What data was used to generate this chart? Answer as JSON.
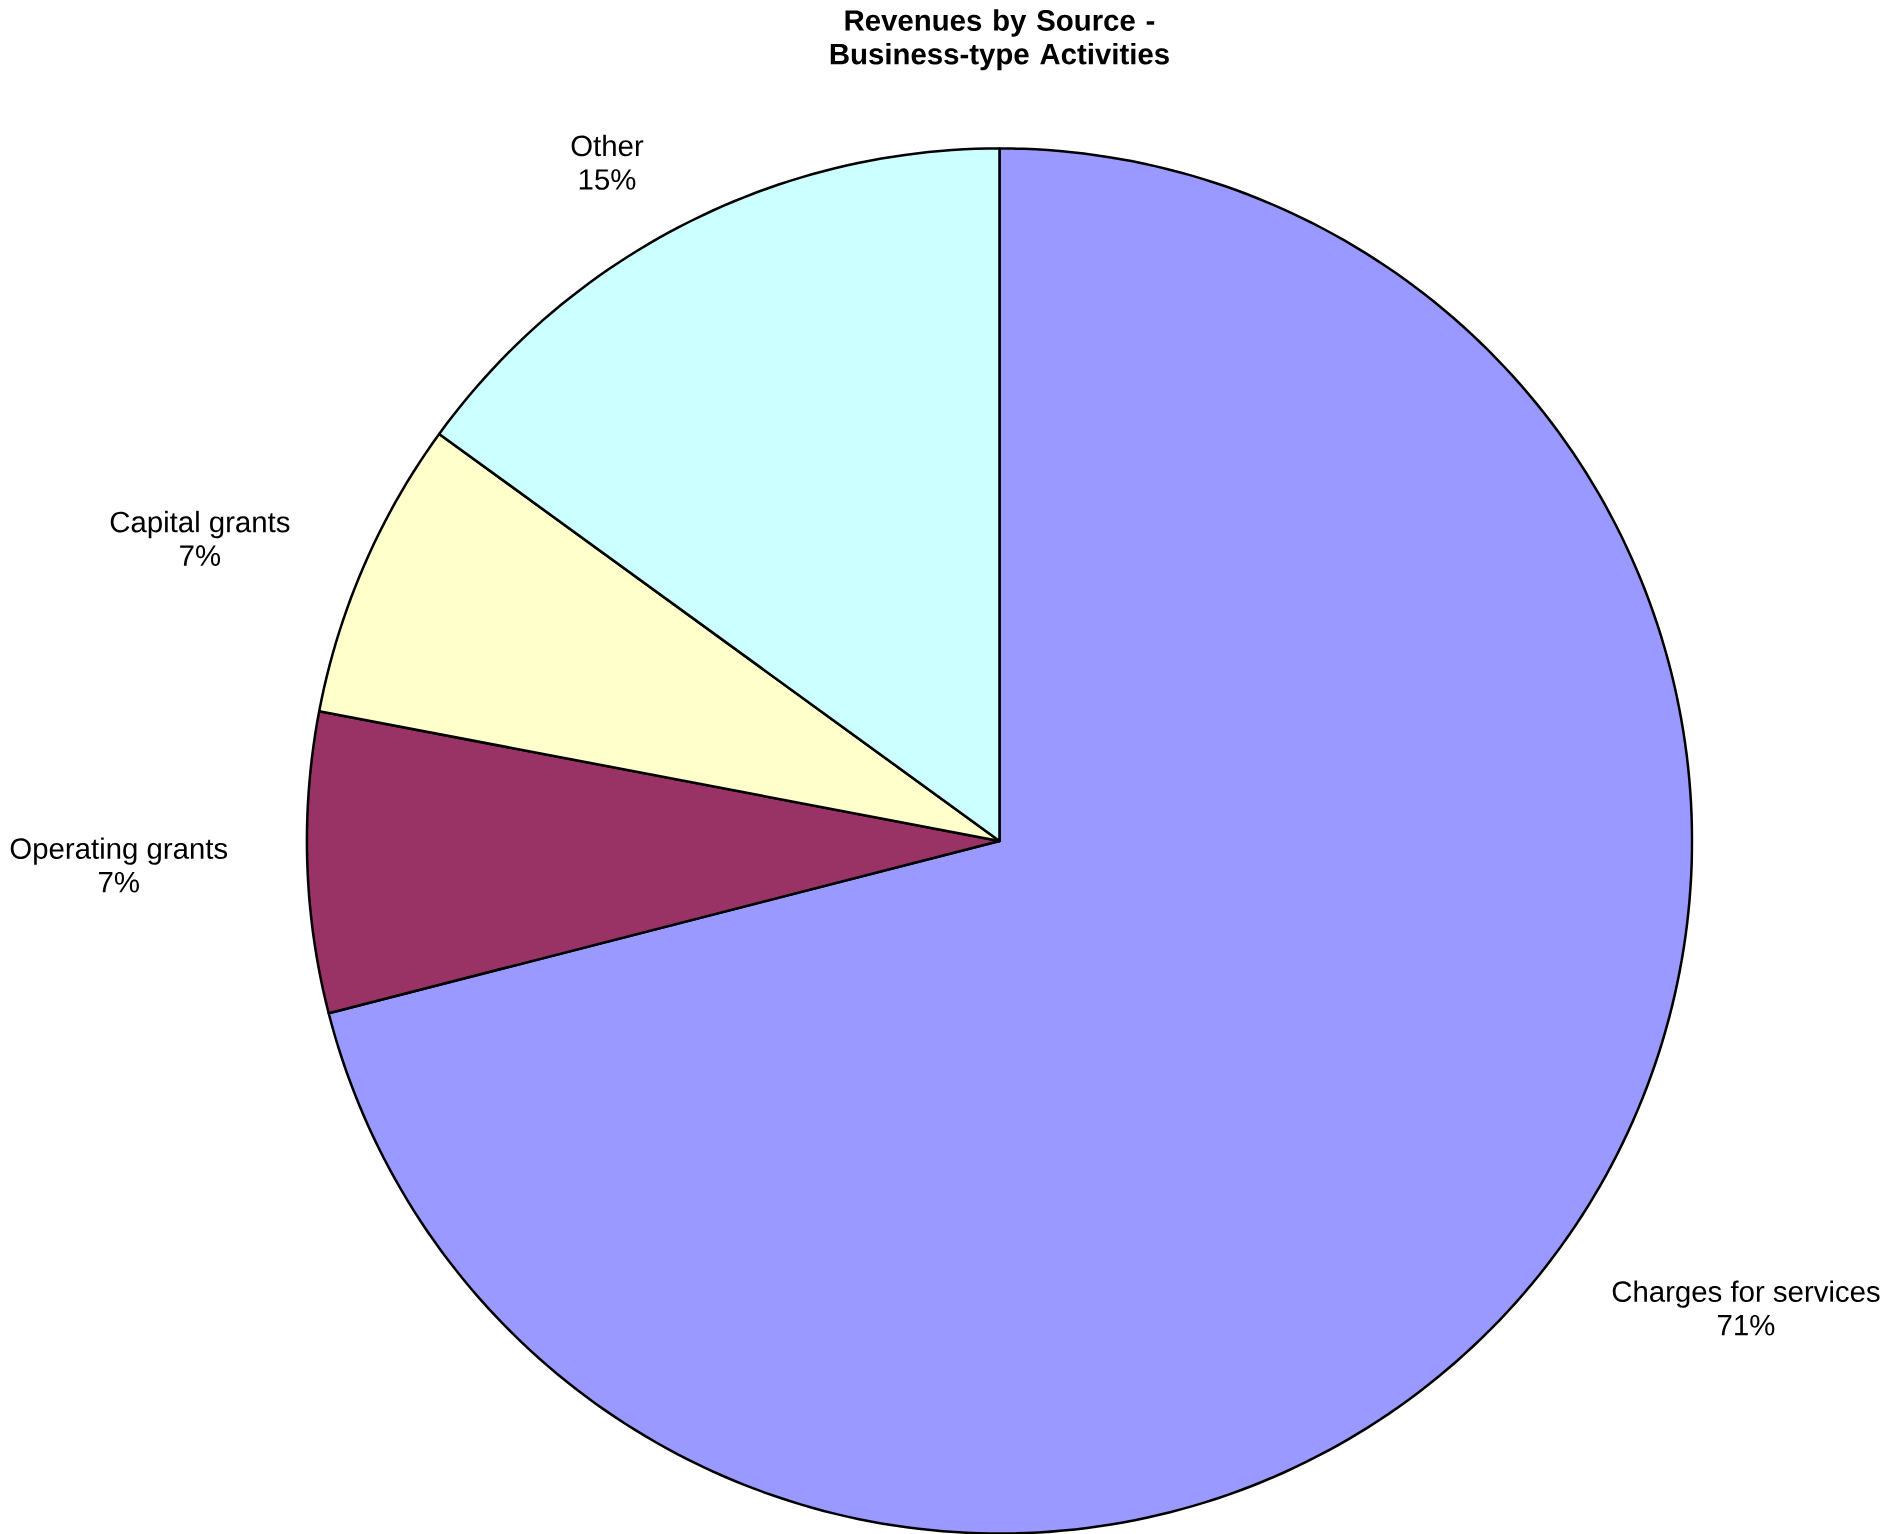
{
  "chart_data": {
    "type": "pie",
    "title": "Revenues by Source - Business-type Activities",
    "categories": [
      "Charges for services",
      "Operating grants",
      "Capital grants",
      "Other"
    ],
    "values": [
      71,
      7,
      7,
      15
    ],
    "value_labels": [
      "71%",
      "7%",
      "7%",
      "15%"
    ],
    "colors": [
      "#9999ff",
      "#993366",
      "#ffffcc",
      "#ccffff"
    ]
  }
}
